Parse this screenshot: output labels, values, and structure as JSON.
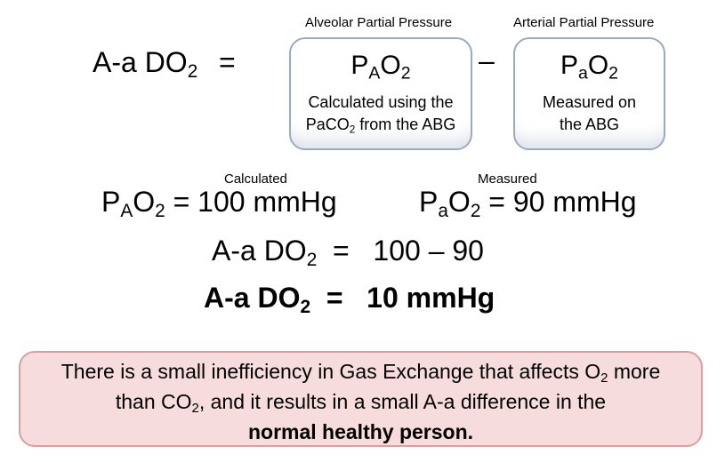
{
  "formula": {
    "lhs": "A-a DO",
    "lhs_sub": "2",
    "equals": "=",
    "minus": "–"
  },
  "alveolar": {
    "header": "Alveolar Partial Pressure",
    "symbol_p": "P",
    "symbol_sub": "A",
    "symbol_o": "O",
    "symbol_o_sub": "2",
    "desc_line1": "Calculated using the",
    "desc_line2_pre": "PaCO",
    "desc_line2_sub": "2",
    "desc_line2_post": " from the ABG"
  },
  "arterial": {
    "header": "Arterial Partial Pressure",
    "symbol_p": "P",
    "symbol_sub": "a",
    "symbol_o": "O",
    "symbol_o_sub": "2",
    "desc_line1": "Measured on",
    "desc_line2": "the ABG"
  },
  "calc": {
    "calculated_label": "Calculated",
    "measured_label": "Measured",
    "pao2_alveolar_value": "= 100 mmHg",
    "pao2_arterial_value": "= 90 mmHg",
    "line2_lhs": "A-a DO",
    "line2_sub": "2",
    "line2_rhs": "=   100 – 90",
    "line3_lhs": "A-a DO",
    "line3_sub": "2",
    "line3_rhs": "=   10 mmHg"
  },
  "note": {
    "line1_pre": "There is a small inefficiency in Gas Exchange that affects O",
    "line1_sub": "2",
    "line1_post": " more",
    "line2_pre": "than CO",
    "line2_sub": "2",
    "line2_post": ", and it results in a small A-a difference in the",
    "line3_bold": "normal healthy person."
  },
  "colors": {
    "box_border": "#9aaac0",
    "note_fill": "#f6dcdc",
    "note_border": "#d9a0a0"
  }
}
